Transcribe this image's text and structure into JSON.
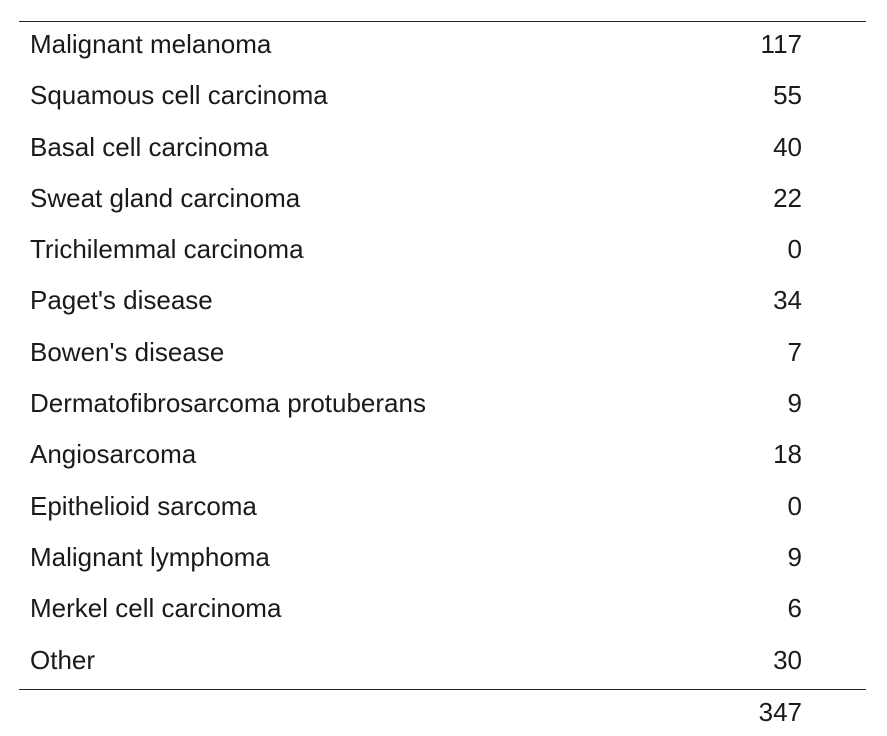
{
  "table": {
    "rows": [
      {
        "label": "Malignant melanoma",
        "value": "117"
      },
      {
        "label": "Squamous cell carcinoma",
        "value": "55"
      },
      {
        "label": "Basal cell carcinoma",
        "value": "40"
      },
      {
        "label": "Sweat gland carcinoma",
        "value": "22"
      },
      {
        "label": "Trichilemmal carcinoma",
        "value": "0"
      },
      {
        "label": "Paget's disease",
        "value": "34"
      },
      {
        "label": "Bowen's disease",
        "value": "7"
      },
      {
        "label": "Dermatofibrosarcoma protuberans",
        "value": "9"
      },
      {
        "label": "Angiosarcoma",
        "value": "18"
      },
      {
        "label": "Epithelioid sarcoma",
        "value": "0"
      },
      {
        "label": "Malignant lymphoma",
        "value": "9"
      },
      {
        "label": "Merkel cell carcinoma",
        "value": "6"
      },
      {
        "label": "Other",
        "value": "30"
      }
    ],
    "total": "347"
  }
}
